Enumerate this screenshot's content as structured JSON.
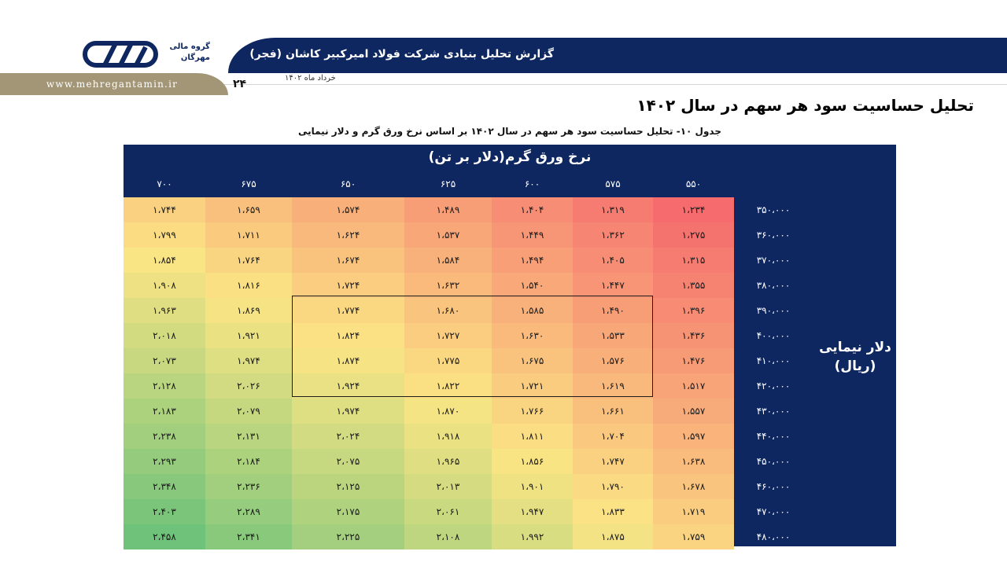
{
  "header": {
    "title": "گزارش تحلیل بنیادی شرکت فولاد امیرکبیر کاشان (فجر)",
    "date": "خرداد ماه ۱۴۰۲",
    "page_number": "۲۴",
    "website": "www.mehregantamin.ir",
    "logo_line1": "گروه مالی",
    "logo_line2": "مهرگان"
  },
  "section_title": "تحلیل حساسیت سود هر سهم در سال ۱۴۰۲",
  "table": {
    "caption": "جدول ۱۰- تحلیل حساسیت سود هر سهم در سال ۱۴۰۲ بر اساس نرخ ورق گرم و دلار نیمایی",
    "column_axis_label": "نرخ ورق گرم(دلار بر تن)",
    "row_axis_label_1": "دلار نیمایی",
    "row_axis_label_2": "(ریال)",
    "column_headers": [
      "۷۰۰",
      "۶۷۵",
      "۶۵۰",
      "۶۲۵",
      "۶۰۰",
      "۵۷۵",
      "۵۵۰"
    ],
    "row_headers": [
      "۳۵۰،۰۰۰",
      "۳۶۰،۰۰۰",
      "۳۷۰،۰۰۰",
      "۳۸۰،۰۰۰",
      "۳۹۰،۰۰۰",
      "۴۰۰،۰۰۰",
      "۴۱۰،۰۰۰",
      "۴۲۰،۰۰۰",
      "۴۳۰،۰۰۰",
      "۴۴۰،۰۰۰",
      "۴۵۰،۰۰۰",
      "۴۶۰،۰۰۰",
      "۴۷۰،۰۰۰",
      "۴۸۰،۰۰۰"
    ],
    "rows": [
      [
        "۱،۷۴۴",
        "۱،۶۵۹",
        "۱،۵۷۴",
        "۱،۴۸۹",
        "۱،۴۰۴",
        "۱،۳۱۹",
        "۱،۲۳۴"
      ],
      [
        "۱،۷۹۹",
        "۱،۷۱۱",
        "۱،۶۲۴",
        "۱،۵۳۷",
        "۱،۴۴۹",
        "۱،۳۶۲",
        "۱،۲۷۵"
      ],
      [
        "۱،۸۵۴",
        "۱،۷۶۴",
        "۱،۶۷۴",
        "۱،۵۸۴",
        "۱،۴۹۴",
        "۱،۴۰۵",
        "۱،۳۱۵"
      ],
      [
        "۱،۹۰۸",
        "۱،۸۱۶",
        "۱،۷۲۴",
        "۱،۶۳۲",
        "۱،۵۴۰",
        "۱،۴۴۷",
        "۱،۳۵۵"
      ],
      [
        "۱،۹۶۳",
        "۱،۸۶۹",
        "۱،۷۷۴",
        "۱،۶۸۰",
        "۱،۵۸۵",
        "۱،۴۹۰",
        "۱،۳۹۶"
      ],
      [
        "۲،۰۱۸",
        "۱،۹۲۱",
        "۱،۸۲۴",
        "۱،۷۲۷",
        "۱،۶۳۰",
        "۱،۵۳۳",
        "۱،۴۳۶"
      ],
      [
        "۲،۰۷۳",
        "۱،۹۷۴",
        "۱،۸۷۴",
        "۱،۷۷۵",
        "۱،۶۷۵",
        "۱،۵۷۶",
        "۱،۴۷۶"
      ],
      [
        "۲،۱۲۸",
        "۲،۰۲۶",
        "۱،۹۲۴",
        "۱،۸۲۲",
        "۱،۷۲۱",
        "۱،۶۱۹",
        "۱،۵۱۷"
      ],
      [
        "۲،۱۸۳",
        "۲،۰۷۹",
        "۱،۹۷۴",
        "۱،۸۷۰",
        "۱،۷۶۶",
        "۱،۶۶۱",
        "۱،۵۵۷"
      ],
      [
        "۲،۲۳۸",
        "۲،۱۳۱",
        "۲،۰۲۴",
        "۱،۹۱۸",
        "۱،۸۱۱",
        "۱،۷۰۴",
        "۱،۵۹۷"
      ],
      [
        "۲،۲۹۳",
        "۲،۱۸۴",
        "۲،۰۷۵",
        "۱،۹۶۵",
        "۱،۸۵۶",
        "۱،۷۴۷",
        "۱،۶۳۸"
      ],
      [
        "۲،۳۴۸",
        "۲،۲۳۶",
        "۲،۱۲۵",
        "۲،۰۱۳",
        "۱،۹۰۱",
        "۱،۷۹۰",
        "۱،۶۷۸"
      ],
      [
        "۲،۴۰۳",
        "۲،۲۸۹",
        "۲،۱۷۵",
        "۲،۰۶۱",
        "۱،۹۴۷",
        "۱،۸۳۳",
        "۱،۷۱۹"
      ],
      [
        "۲،۴۵۸",
        "۲،۳۴۱",
        "۲،۲۲۵",
        "۲،۱۰۸",
        "۱،۹۹۲",
        "۱،۸۷۵",
        "۱،۷۵۹"
      ]
    ],
    "highlight": {
      "row_start": 4,
      "row_end": 7,
      "col_start": 2,
      "col_end": 5
    },
    "colors": {
      "navy": "#0e2760",
      "heat_low": "#f56b6e",
      "heat_mid": "#fbe584",
      "heat_high": "#6ec27a"
    }
  }
}
